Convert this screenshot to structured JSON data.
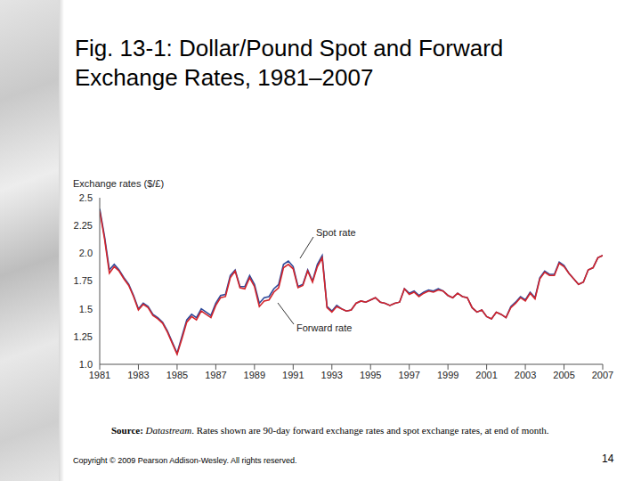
{
  "slide": {
    "title": "Fig. 13-1: Dollar/Pound Spot and Forward Exchange Rates, 1981–2007",
    "source": {
      "label": "Source:",
      "name": "Datastream",
      "text": ". Rates shown are 90-day forward exchange rates and spot exchange rates, at end of month."
    },
    "copyright": "Copyright © 2009 Pearson Addison-Wesley. All rights reserved.",
    "page": "14"
  },
  "chart_data": {
    "type": "line",
    "y_label": "Exchange rates ($/£)",
    "x": [
      1981,
      1981.25,
      1981.5,
      1981.75,
      1982,
      1982.25,
      1982.5,
      1982.75,
      1983,
      1983.25,
      1983.5,
      1983.75,
      1984,
      1984.25,
      1984.5,
      1984.75,
      1985,
      1985.25,
      1985.5,
      1985.75,
      1986,
      1986.25,
      1986.5,
      1986.75,
      1987,
      1987.25,
      1987.5,
      1987.75,
      1988,
      1988.25,
      1988.5,
      1988.75,
      1989,
      1989.25,
      1989.5,
      1989.75,
      1990,
      1990.25,
      1990.5,
      1990.75,
      1991,
      1991.25,
      1991.5,
      1991.75,
      1992,
      1992.25,
      1992.5,
      1992.75,
      1993,
      1993.25,
      1993.5,
      1993.75,
      1994,
      1994.25,
      1994.5,
      1994.75,
      1995,
      1995.25,
      1995.5,
      1995.75,
      1996,
      1996.25,
      1996.5,
      1996.75,
      1997,
      1997.25,
      1997.5,
      1997.75,
      1998,
      1998.25,
      1998.5,
      1998.75,
      1999,
      1999.25,
      1999.5,
      1999.75,
      2000,
      2000.25,
      2000.5,
      2000.75,
      2001,
      2001.25,
      2001.5,
      2001.75,
      2002,
      2002.25,
      2002.5,
      2002.75,
      2003,
      2003.25,
      2003.5,
      2003.75,
      2004,
      2004.25,
      2004.5,
      2004.75,
      2005,
      2005.25,
      2005.5,
      2005.75,
      2006,
      2006.25,
      2006.5,
      2006.75,
      2007
    ],
    "series": [
      {
        "name": "Spot rate",
        "color": "#2e4a9a",
        "values": [
          2.4,
          2.15,
          1.85,
          1.9,
          1.85,
          1.78,
          1.72,
          1.62,
          1.5,
          1.55,
          1.52,
          1.45,
          1.42,
          1.38,
          1.3,
          1.2,
          1.1,
          1.25,
          1.4,
          1.45,
          1.42,
          1.5,
          1.47,
          1.44,
          1.55,
          1.62,
          1.63,
          1.8,
          1.85,
          1.7,
          1.7,
          1.8,
          1.72,
          1.55,
          1.6,
          1.61,
          1.68,
          1.72,
          1.9,
          1.93,
          1.88,
          1.7,
          1.72,
          1.85,
          1.75,
          1.9,
          1.98,
          1.52,
          1.48,
          1.53,
          1.5,
          1.48,
          1.49,
          1.55,
          1.57,
          1.56,
          1.58,
          1.6,
          1.56,
          1.55,
          1.53,
          1.55,
          1.56,
          1.68,
          1.64,
          1.66,
          1.62,
          1.65,
          1.67,
          1.66,
          1.68,
          1.66,
          1.62,
          1.6,
          1.64,
          1.61,
          1.6,
          1.51,
          1.47,
          1.49,
          1.43,
          1.41,
          1.47,
          1.45,
          1.42,
          1.52,
          1.56,
          1.61,
          1.58,
          1.65,
          1.6,
          1.78,
          1.84,
          1.81,
          1.81,
          1.92,
          1.89,
          1.82,
          1.77,
          1.72,
          1.74,
          1.85,
          1.87,
          1.96,
          1.98
        ]
      },
      {
        "name": "Forward rate",
        "color": "#d3242b",
        "values": [
          2.38,
          2.13,
          1.82,
          1.88,
          1.84,
          1.77,
          1.71,
          1.61,
          1.49,
          1.54,
          1.51,
          1.44,
          1.41,
          1.37,
          1.29,
          1.19,
          1.09,
          1.23,
          1.38,
          1.43,
          1.4,
          1.48,
          1.45,
          1.42,
          1.53,
          1.6,
          1.61,
          1.78,
          1.84,
          1.69,
          1.68,
          1.78,
          1.7,
          1.52,
          1.57,
          1.58,
          1.65,
          1.69,
          1.87,
          1.9,
          1.86,
          1.69,
          1.71,
          1.84,
          1.74,
          1.88,
          1.96,
          1.51,
          1.47,
          1.52,
          1.5,
          1.48,
          1.49,
          1.55,
          1.57,
          1.56,
          1.58,
          1.6,
          1.56,
          1.55,
          1.53,
          1.55,
          1.56,
          1.68,
          1.63,
          1.65,
          1.61,
          1.64,
          1.66,
          1.65,
          1.67,
          1.66,
          1.62,
          1.6,
          1.64,
          1.61,
          1.6,
          1.51,
          1.47,
          1.49,
          1.43,
          1.41,
          1.47,
          1.45,
          1.42,
          1.51,
          1.55,
          1.6,
          1.57,
          1.64,
          1.59,
          1.77,
          1.83,
          1.8,
          1.8,
          1.91,
          1.88,
          1.82,
          1.77,
          1.72,
          1.74,
          1.85,
          1.87,
          1.96,
          1.98
        ]
      }
    ],
    "xlim": [
      1981,
      2007
    ],
    "xticks": [
      1981,
      1983,
      1985,
      1987,
      1989,
      1991,
      1993,
      1995,
      1997,
      1999,
      2001,
      2003,
      2005,
      2007
    ],
    "ylim": [
      1,
      2.5
    ],
    "yticks": [
      {
        "value": 1,
        "label": "1.0"
      },
      1.25,
      {
        "value": 1.5,
        "label": "1.5"
      },
      1.75,
      {
        "value": 2,
        "label": "2.0"
      },
      2.25,
      {
        "value": 2.5,
        "label": "2.5"
      }
    ],
    "grid": false
  }
}
